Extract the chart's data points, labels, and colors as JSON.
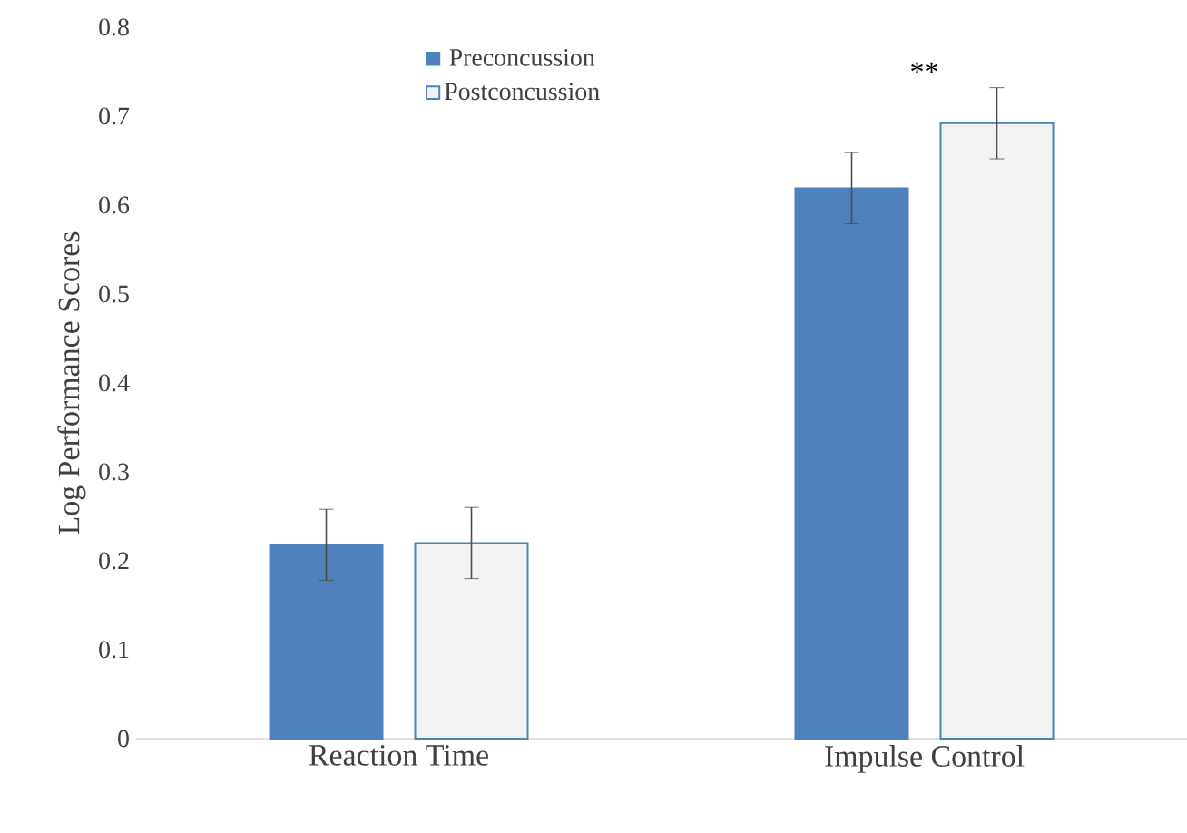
{
  "chart_data": {
    "type": "bar",
    "ylabel": "Log Performance Scores",
    "categories": [
      "Reaction Time",
      "Impulse Control"
    ],
    "series": [
      {
        "name": "Preconcussion",
        "color": "#4f81bd",
        "values": [
          0.218,
          0.619
        ],
        "errors": [
          0.04,
          0.04
        ]
      },
      {
        "name": "Postconcussion",
        "color": "#f2f2f2",
        "values": [
          0.22,
          0.692
        ],
        "errors": [
          0.04,
          0.04
        ]
      }
    ],
    "ylim": [
      0,
      0.8
    ],
    "yticks": [
      0,
      0.1,
      0.2,
      0.3,
      0.4,
      0.5,
      0.6,
      0.7,
      0.8
    ],
    "legend": "top left",
    "grid": false,
    "annotations": [
      "**"
    ]
  }
}
